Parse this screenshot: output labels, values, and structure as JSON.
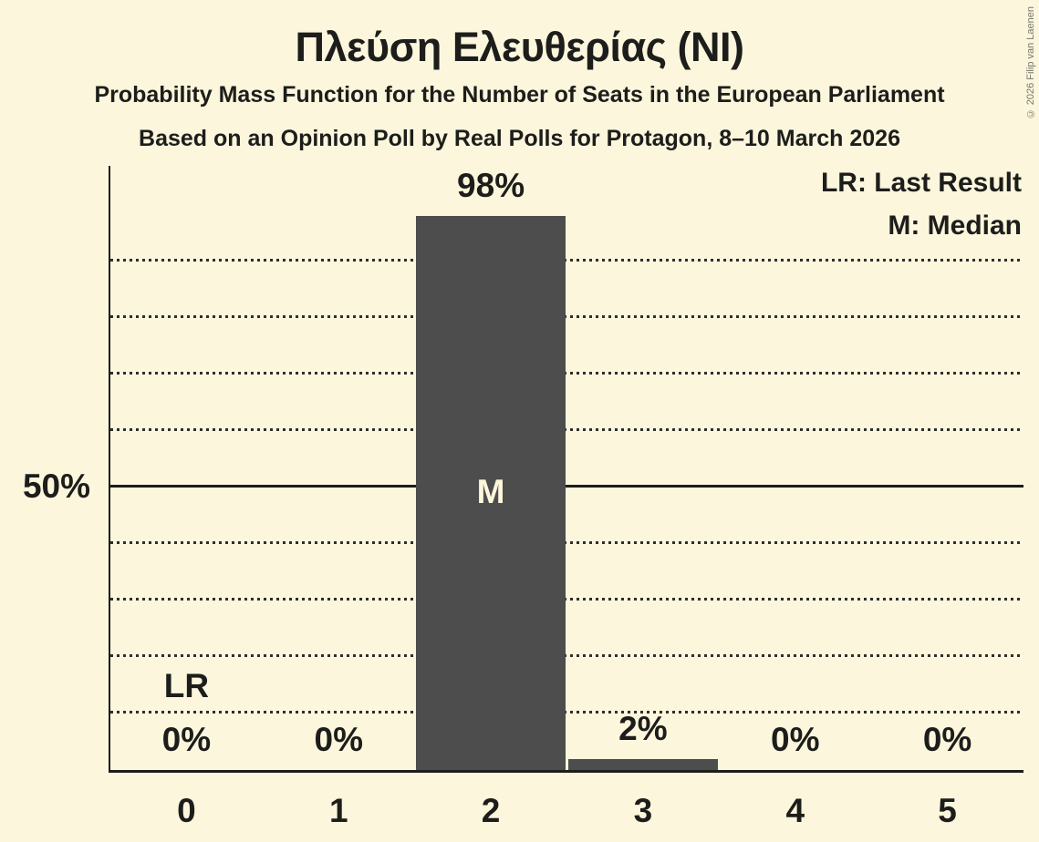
{
  "title": "Πλεύση Ελευθερίας (NI)",
  "subtitle": "Probability Mass Function for the Number of Seats in the European Parliament",
  "subsubtitle": "Based on an Opinion Poll by Real Polls for Protagon, 8–10 March 2026",
  "copyright": "© 2026 Filip van Laenen",
  "legend": {
    "last_result": "LR: Last Result",
    "median": "M: Median"
  },
  "y_axis": {
    "tick_label": "50%",
    "tick_value": 50
  },
  "chart_data": {
    "type": "bar",
    "title": "Πλεύση Ελευθερίας (NI)",
    "categories": [
      "0",
      "1",
      "2",
      "3",
      "4",
      "5"
    ],
    "values": [
      0,
      0,
      98,
      2,
      0,
      0
    ],
    "value_labels": [
      "0%",
      "0%",
      "98%",
      "2%",
      "0%",
      "0%"
    ],
    "ylim": [
      0,
      107
    ],
    "gridlines_pct": [
      10,
      20,
      30,
      40,
      50,
      60,
      70,
      80,
      90
    ],
    "solid_gridline_pct": 50,
    "grid_style": "dotted",
    "legend_position": "top-right",
    "annotations": [
      {
        "category": "0",
        "text": "LR",
        "meaning": "Last Result",
        "position": "above_axis"
      },
      {
        "category": "2",
        "text": "M",
        "meaning": "Median",
        "position": "inside_bar"
      }
    ],
    "colors": {
      "background": "#fbf6dc",
      "bar": "#4d4d4d",
      "text": "#1d1d1b",
      "annotation_inside_bar": "#fbf6dc",
      "copyright_text": "#77776f"
    }
  }
}
